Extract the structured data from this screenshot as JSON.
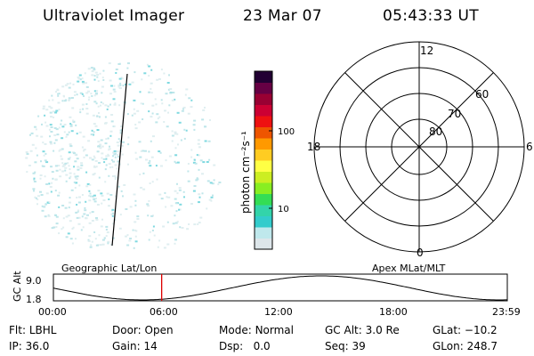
{
  "header": {
    "instrument": "Ultraviolet Imager",
    "date": "23 Mar 07",
    "time": "05:43:33 UT"
  },
  "colorbar": {
    "unit_label": "photon cm⁻²s⁻¹",
    "ticks": [
      {
        "label": "100",
        "value": 100
      },
      {
        "label": "10",
        "value": 10
      }
    ],
    "scale": "log",
    "colors": [
      "#dde6ea",
      "#bfe8ec",
      "#33cccc",
      "#33d4aa",
      "#33dd55",
      "#88ee22",
      "#ccee22",
      "#ffff44",
      "#ffcc22",
      "#ff9900",
      "#ee5500",
      "#ee1111",
      "#cc0033",
      "#990033",
      "#660044",
      "#220033"
    ]
  },
  "polar_grid": {
    "latitude_labels": [
      "80",
      "70",
      "60"
    ],
    "mlt_labels": {
      "top": "12",
      "bottom": "0",
      "left": "18",
      "right": "6"
    }
  },
  "timeline": {
    "ylabel": "GC Alt",
    "y_ticks": [
      "9.0",
      "1.8"
    ],
    "left_caption": "Geographic Lat/Lon",
    "right_caption": "Apex MLat/MLT",
    "x_ticks": [
      "00:00",
      "06:00",
      "12:00",
      "18:00",
      "23:59"
    ],
    "marker_time_hours": 5.725,
    "marker_color": "#dd0000"
  },
  "footer": {
    "row1": [
      {
        "key": "Flt:",
        "value": "LBHL"
      },
      {
        "key": "Door:",
        "value": "Open"
      },
      {
        "key": "Mode:",
        "value": "Normal"
      },
      {
        "key": "GC Alt:",
        "value": "3.0 Re"
      },
      {
        "key": "GLat:",
        "value": "−10.2"
      }
    ],
    "row2": [
      {
        "key": "IP:",
        "value": "36.0"
      },
      {
        "key": "Gain:",
        "value": "14"
      },
      {
        "key": "Dsp:",
        "value": "0.0"
      },
      {
        "key": "Seq:",
        "value": "39"
      },
      {
        "key": "GLon:",
        "value": "248.7"
      }
    ]
  }
}
